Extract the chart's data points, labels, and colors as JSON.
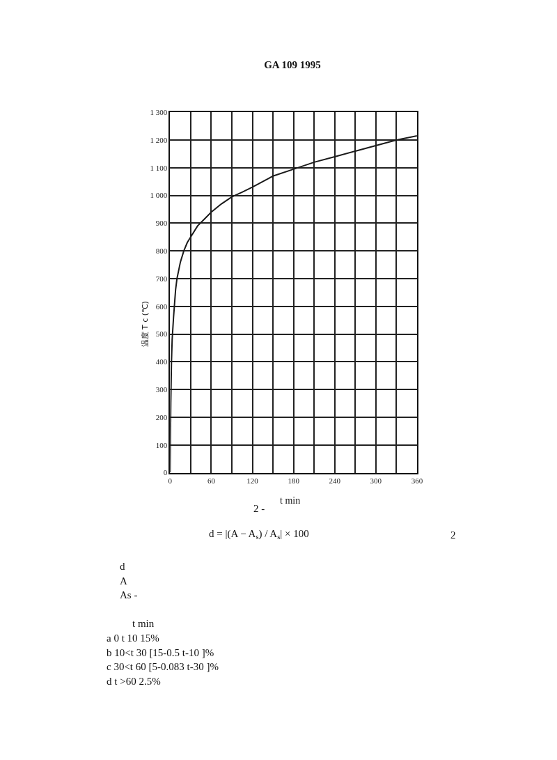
{
  "chart_data": {
    "type": "line",
    "title": "GA 109 1995",
    "xlabel": "t min",
    "ylabel": "温度 T c (℃)",
    "x": [
      0,
      1,
      2,
      3,
      5,
      8,
      10,
      15,
      20,
      25,
      30,
      40,
      50,
      60,
      75,
      90,
      105,
      120,
      150,
      180,
      210,
      240,
      270,
      300,
      330,
      360
    ],
    "series": [
      {
        "color": "#1a1a1a",
        "values": [
          0,
          250,
          400,
          480,
          560,
          660,
          700,
          760,
          800,
          830,
          850,
          890,
          915,
          940,
          970,
          995,
          1012,
          1030,
          1070,
          1095,
          1120,
          1140,
          1160,
          1180,
          1200,
          1215
        ]
      }
    ],
    "xlim": [
      0,
      360
    ],
    "ylim": [
      0,
      1300
    ],
    "xticks": [
      0,
      {
        "value": 30,
        "label": null
      },
      60,
      {
        "value": 90,
        "label": null
      },
      120,
      {
        "value": 150,
        "label": null
      },
      180,
      {
        "value": 210,
        "label": null
      },
      240,
      {
        "value": 270,
        "label": null
      },
      300,
      {
        "value": 330,
        "label": null
      },
      360
    ],
    "yticks": [
      0,
      100,
      200,
      300,
      400,
      500,
      600,
      700,
      800,
      900,
      {
        "value": 1000,
        "label": "1 000"
      },
      {
        "value": 1100,
        "label": "1 100"
      },
      {
        "value": 1200,
        "label": "1 200"
      },
      {
        "value": 1300,
        "label": "1 300"
      }
    ],
    "grid": true,
    "marker": "none",
    "line_style": "solid",
    "annotations": [
      "2 -",
      "d = |(A − A$_{s}$) / A$_{s}$| × 100",
      "2",
      "d",
      "A",
      "As -",
      "t min",
      "a 0 t 10 15%",
      "b 10<t 30 [15-0.5 t-10 ]%",
      "c 30<t 60 [5-0.083 t-30 ]%",
      "d t >60 2.5%"
    ]
  }
}
